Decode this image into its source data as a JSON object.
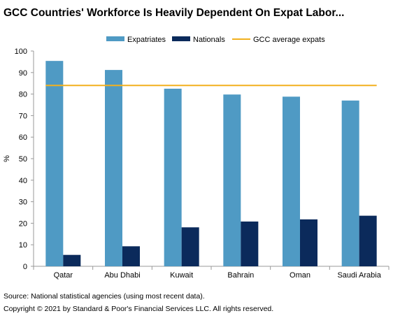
{
  "title": "GCC Countries' Workforce Is Heavily Dependent On Expat Labor...",
  "source": "Source: National statistical agencies (using most recent data).",
  "copyright": "Copyright © 2021 by Standard & Poor's Financial Services LLC. All rights reserved.",
  "colors": {
    "expatriates": "#4f9ac4",
    "nationals": "#0b2a5b",
    "average": "#f2b01e",
    "axis": "#999999",
    "text": "#000000"
  },
  "chart_data": {
    "type": "bar",
    "title": "GCC Countries' Workforce Is Heavily Dependent On Expat Labor...",
    "ylabel": "%",
    "xlabel": "",
    "ylim": [
      0,
      100
    ],
    "yticks": [
      0,
      10,
      20,
      30,
      40,
      50,
      60,
      70,
      80,
      90,
      100
    ],
    "categories": [
      "Qatar",
      "Abu Dhabi",
      "Kuwait",
      "Bahrain",
      "Oman",
      "Saudi Arabia"
    ],
    "series": [
      {
        "name": "Expatriates",
        "values": [
          95.4,
          91.2,
          82.5,
          79.8,
          78.8,
          77.0
        ]
      },
      {
        "name": "Nationals",
        "values": [
          5.3,
          9.3,
          18.1,
          20.8,
          21.8,
          23.5
        ]
      }
    ],
    "reference_lines": [
      {
        "name": "GCC average expats",
        "value": 84.0
      }
    ],
    "legend_position": "top",
    "grid": false
  }
}
